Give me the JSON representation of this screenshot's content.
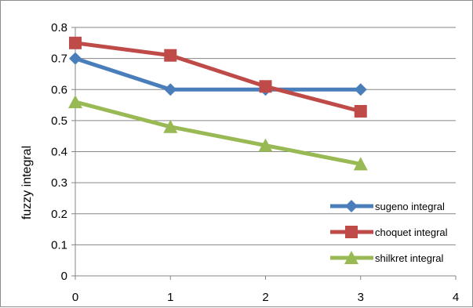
{
  "chart_data": {
    "type": "line",
    "title": "",
    "xlabel": "",
    "ylabel": "fuzzy integral",
    "x": [
      0,
      1,
      2,
      3
    ],
    "x_ticks": [
      "0",
      "1",
      "2",
      "3",
      "4"
    ],
    "y_ticks": [
      "0",
      "0.1",
      "0.2",
      "0.3",
      "0.4",
      "0.5",
      "0.6",
      "0.7",
      "0.8"
    ],
    "xlim": [
      0,
      4
    ],
    "ylim": [
      0,
      0.8
    ],
    "grid": "horizontal",
    "legend_position": "bottom-right",
    "series": [
      {
        "name": "sugeno integral",
        "marker": "diamond",
        "color": "#4a7ebb",
        "values": [
          0.7,
          0.6,
          0.6,
          0.6
        ]
      },
      {
        "name": "choquet integral",
        "marker": "square",
        "color": "#be4b48",
        "values": [
          0.75,
          0.71,
          0.61,
          0.53
        ]
      },
      {
        "name": "shilkret integral",
        "marker": "triangle",
        "color": "#98b954",
        "values": [
          0.56,
          0.48,
          0.42,
          0.36
        ]
      }
    ]
  }
}
